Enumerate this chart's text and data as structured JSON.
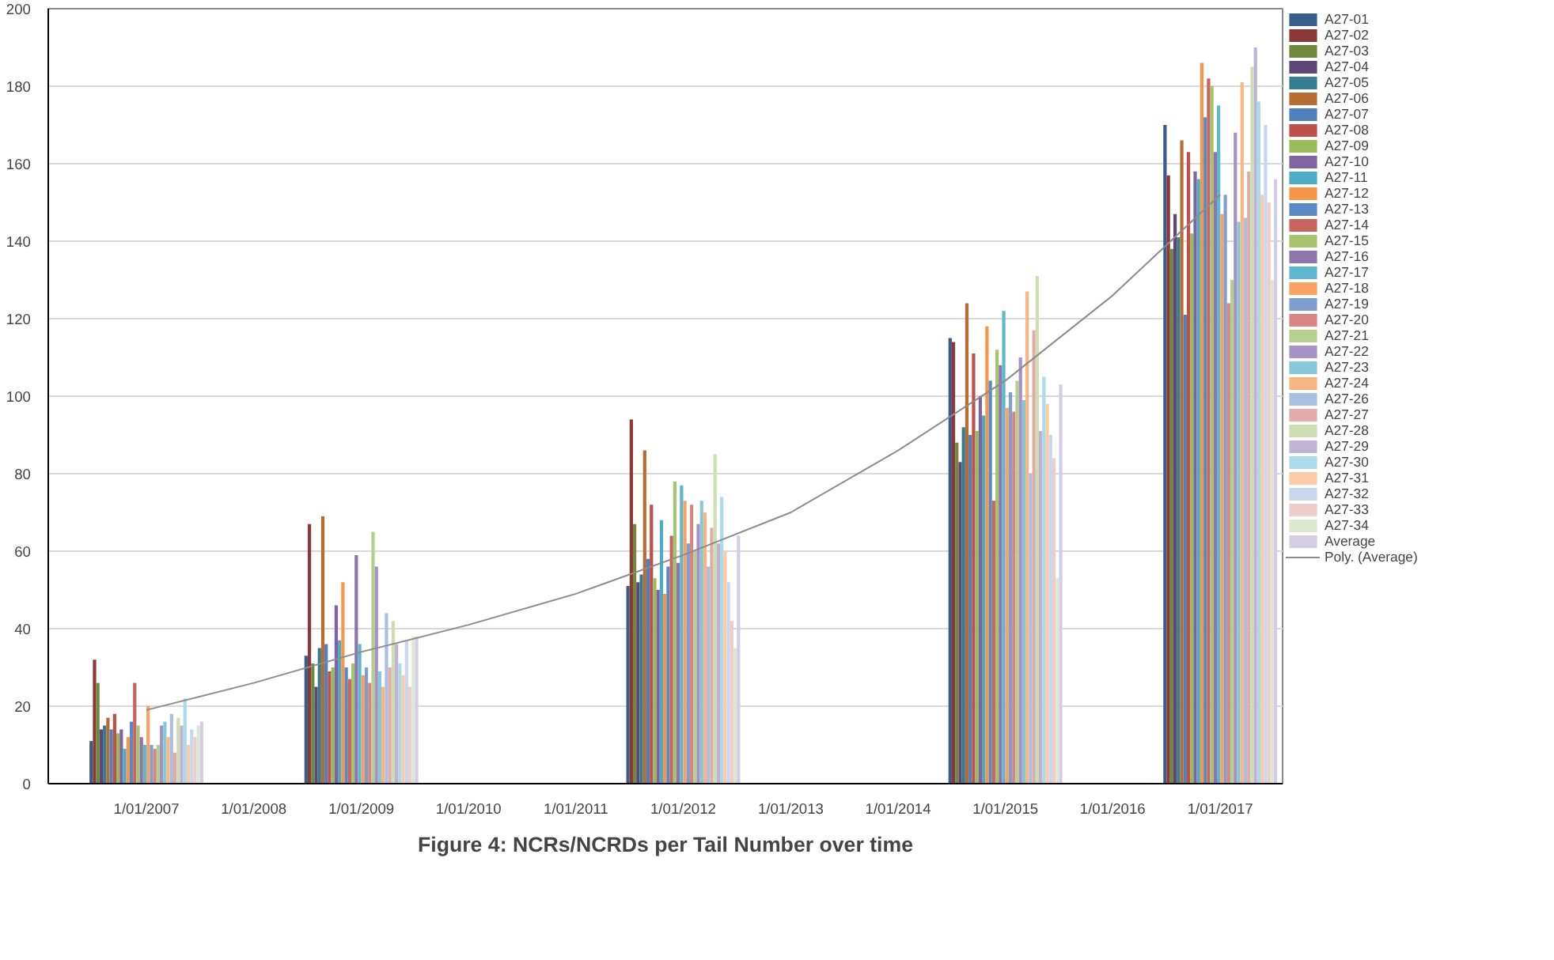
{
  "chart_data": {
    "type": "bar",
    "title": "Figure 4: NCRs/NCRDs per Tail Number over time",
    "x": [
      "2007-01-01",
      "2009-01-01",
      "2012-01-01",
      "2015-01-01",
      "2017-01-01"
    ],
    "xlim": [
      "2006-02-01",
      "2017-08-01"
    ],
    "xticks": [
      {
        "value": "2007-01-01",
        "label": "1/01/2007"
      },
      {
        "value": "2008-01-01",
        "label": "1/01/2008"
      },
      {
        "value": "2009-01-01",
        "label": "1/01/2009"
      },
      {
        "value": "2010-01-01",
        "label": "1/01/2010"
      },
      {
        "value": "2011-01-01",
        "label": "1/01/2011"
      },
      {
        "value": "2012-01-01",
        "label": "1/01/2012"
      },
      {
        "value": "2013-01-01",
        "label": "1/01/2013"
      },
      {
        "value": "2014-01-01",
        "label": "1/01/2014"
      },
      {
        "value": "2015-01-01",
        "label": "1/01/2015"
      },
      {
        "value": "2016-01-01",
        "label": "1/01/2016"
      },
      {
        "value": "2017-01-01",
        "label": "1/01/2017"
      }
    ],
    "ylim": [
      0,
      200
    ],
    "yticks": [
      0,
      20,
      40,
      60,
      80,
      100,
      120,
      140,
      160,
      180,
      200
    ],
    "grid": "y",
    "legend": "right",
    "series": [
      {
        "name": "A27-01",
        "color": "#385d8a",
        "values": [
          11,
          33,
          51,
          115,
          170
        ]
      },
      {
        "name": "A27-02",
        "color": "#8c3836",
        "values": [
          32,
          67,
          94,
          114,
          157
        ]
      },
      {
        "name": "A27-03",
        "color": "#71893f",
        "values": [
          26,
          31,
          67,
          88,
          138
        ]
      },
      {
        "name": "A27-04",
        "color": "#5c4776",
        "values": [
          14,
          25,
          52,
          83,
          147
        ]
      },
      {
        "name": "A27-05",
        "color": "#357d91",
        "values": [
          15,
          35,
          54,
          92,
          141
        ]
      },
      {
        "name": "A27-06",
        "color": "#b66d31",
        "values": [
          17,
          69,
          86,
          124,
          166
        ]
      },
      {
        "name": "A27-07",
        "color": "#4f81bd",
        "values": [
          14,
          36,
          58,
          90,
          121
        ]
      },
      {
        "name": "A27-08",
        "color": "#c0504d",
        "values": [
          18,
          29,
          72,
          111,
          163
        ]
      },
      {
        "name": "A27-09",
        "color": "#9bbb59",
        "values": [
          13,
          30,
          53,
          91,
          142
        ]
      },
      {
        "name": "A27-10",
        "color": "#8064a2",
        "values": [
          14,
          46,
          50,
          100,
          158
        ]
      },
      {
        "name": "A27-11",
        "color": "#4bacc6",
        "values": [
          9,
          37,
          68,
          95,
          156
        ]
      },
      {
        "name": "A27-12",
        "color": "#f79646",
        "values": [
          12,
          52,
          49,
          118,
          186
        ]
      },
      {
        "name": "A27-13",
        "color": "#5a8ac6",
        "values": [
          16,
          30,
          56,
          104,
          172
        ]
      },
      {
        "name": "A27-14",
        "color": "#c96461",
        "values": [
          26,
          27,
          64,
          73,
          182
        ]
      },
      {
        "name": "A27-15",
        "color": "#a6c46e",
        "values": [
          15,
          31,
          78,
          112,
          180
        ]
      },
      {
        "name": "A27-16",
        "color": "#8d76ae",
        "values": [
          12,
          59,
          57,
          108,
          163
        ]
      },
      {
        "name": "A27-17",
        "color": "#5eb7cf",
        "values": [
          10,
          36,
          77,
          122,
          175
        ]
      },
      {
        "name": "A27-18",
        "color": "#f9a262",
        "values": [
          20,
          28,
          73,
          97,
          147
        ]
      },
      {
        "name": "A27-19",
        "color": "#7f9fd0",
        "values": [
          10,
          30,
          62,
          101,
          152
        ]
      },
      {
        "name": "A27-20",
        "color": "#d98584",
        "values": [
          9,
          26,
          72,
          96,
          124
        ]
      },
      {
        "name": "A27-21",
        "color": "#b7cf8c",
        "values": [
          10,
          65,
          60,
          104,
          130
        ]
      },
      {
        "name": "A27-22",
        "color": "#a593c3",
        "values": [
          15,
          56,
          67,
          110,
          168
        ]
      },
      {
        "name": "A27-23",
        "color": "#84c8da",
        "values": [
          16,
          29,
          73,
          99,
          145
        ]
      },
      {
        "name": "A27-24",
        "color": "#fab47f",
        "values": [
          12,
          25,
          70,
          127,
          181
        ]
      },
      {
        "name": "A27-26",
        "color": "#a9c0e2",
        "values": [
          18,
          44,
          56,
          80,
          146
        ]
      },
      {
        "name": "A27-27",
        "color": "#e2aaa9",
        "values": [
          8,
          30,
          66,
          117,
          158
        ]
      },
      {
        "name": "A27-28",
        "color": "#cddfb0",
        "values": [
          17,
          42,
          85,
          131,
          185
        ]
      },
      {
        "name": "A27-29",
        "color": "#c0b4d6",
        "values": [
          15,
          36,
          62,
          91,
          190
        ]
      },
      {
        "name": "A27-30",
        "color": "#abdaea",
        "values": [
          22,
          31,
          74,
          105,
          176
        ]
      },
      {
        "name": "A27-31",
        "color": "#fbcba5",
        "values": [
          10,
          28,
          60,
          98,
          152
        ]
      },
      {
        "name": "A27-32",
        "color": "#c9d7ee",
        "values": [
          14,
          37,
          52,
          90,
          170
        ]
      },
      {
        "name": "A27-33",
        "color": "#edcccb",
        "values": [
          12,
          25,
          42,
          84,
          150
        ]
      },
      {
        "name": "A27-34",
        "color": "#dde9cf",
        "values": [
          15,
          38,
          35,
          53,
          130
        ]
      },
      {
        "name": "Average",
        "color": "#d5cde5",
        "values": [
          16,
          38,
          64,
          103,
          156
        ]
      },
      {
        "name": "Poly. (Average)",
        "type": "line",
        "color": "#8c8c8c",
        "x": [
          "2007-01-01",
          "2008-01-01",
          "2009-01-01",
          "2010-01-01",
          "2011-01-01",
          "2012-01-01",
          "2013-01-01",
          "2014-01-01",
          "2015-01-01",
          "2016-01-01",
          "2017-01-01"
        ],
        "values": [
          19,
          26,
          34,
          41,
          49,
          59,
          70,
          86,
          104,
          126,
          152
        ]
      }
    ]
  }
}
